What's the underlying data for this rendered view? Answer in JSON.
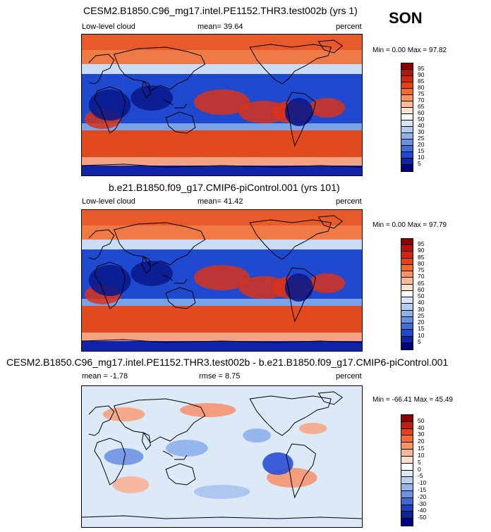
{
  "season": "SON",
  "panels": [
    {
      "title": "CESM2.B1850.C96_mg17.intel.PE1152.THR3.test002b (yrs 1)",
      "left_label": "Low-level cloud",
      "center_label": "mean=  39.64",
      "right_label": "percent",
      "minmax": "Min =   0.00 Max =  97.82",
      "colorbar": {
        "labels": [
          "95",
          "90",
          "85",
          "80",
          "75",
          "70",
          "65",
          "60",
          "50",
          "40",
          "30",
          "25",
          "20",
          "15",
          "10",
          "5"
        ],
        "colors": [
          "#8b0000",
          "#b3140f",
          "#d4260f",
          "#e8400f",
          "#f26a2e",
          "#f8925f",
          "#fbb996",
          "#fde2cc",
          "#ffffff",
          "#d7e6f7",
          "#b2cdf0",
          "#8cb2ea",
          "#6693e0",
          "#3d6fd8",
          "#1f4ad0",
          "#0f24a8",
          "#000080"
        ]
      },
      "map_style": "clim"
    },
    {
      "title": "b.e21.B1850.f09_g17.CMIP6-piControl.001 (yrs 101)",
      "left_label": "Low-level cloud",
      "center_label": "mean=  41.42",
      "right_label": "percent",
      "minmax": "Min =   0.00 Max =  97.79",
      "colorbar": {
        "labels": [
          "95",
          "90",
          "85",
          "80",
          "75",
          "70",
          "65",
          "60",
          "50",
          "40",
          "30",
          "25",
          "20",
          "15",
          "10",
          "5"
        ],
        "colors": [
          "#8b0000",
          "#b3140f",
          "#d4260f",
          "#e8400f",
          "#f26a2e",
          "#f8925f",
          "#fbb996",
          "#fde2cc",
          "#ffffff",
          "#d7e6f7",
          "#b2cdf0",
          "#8cb2ea",
          "#6693e0",
          "#3d6fd8",
          "#1f4ad0",
          "#0f24a8",
          "#000080"
        ]
      },
      "map_style": "clim"
    },
    {
      "title": "CESM2.B1850.C96_mg17.intel.PE1152.THR3.test002b - b.e21.B1850.f09_g17.CMIP6-piControl.001",
      "left_label": "mean =  -1.78",
      "center_label": "rmse =   8.75",
      "right_label": "percent",
      "minmax": "Min = -66.41 Max =  45.49",
      "colorbar": {
        "labels": [
          "50",
          "40",
          "30",
          "20",
          "15",
          "10",
          "5",
          "0",
          "-5",
          "-10",
          "-15",
          "-20",
          "-30",
          "-40",
          "-50"
        ],
        "colors": [
          "#8b0000",
          "#c21b10",
          "#e5401a",
          "#f26a3a",
          "#f89468",
          "#fbb896",
          "#fde0cc",
          "#ffffff",
          "#dae8f8",
          "#b9d1f0",
          "#92b5ea",
          "#6a94e0",
          "#3d6ad6",
          "#1c3fbf",
          "#0f2396",
          "#000080"
        ]
      },
      "map_style": "diff"
    }
  ]
}
